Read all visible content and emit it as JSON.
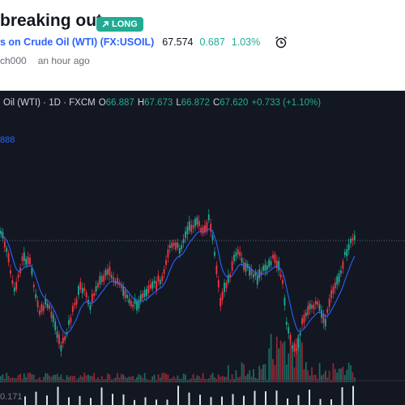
{
  "idea": {
    "title": "breaking out",
    "badge": "LONG",
    "symbol_link": "s on Crude Oil (WTI) (FX:USOIL)",
    "price": "67.574",
    "change": "0.687",
    "change_pct": "1.03%",
    "author": "ch000",
    "time": "an hour ago"
  },
  "chart": {
    "legend": {
      "symbol": "Oil (WTI) · 1D · FXCM",
      "o_label": "O",
      "o": "66.887",
      "h_label": "H",
      "h": "67.673",
      "l_label": "L",
      "l": "66.872",
      "c_label": "C",
      "c": "67.620",
      "chg": "+0.733 (+1.10%)"
    },
    "indicator_value": "888",
    "bottom_value": "0.171",
    "colors": {
      "up": "#22ab94",
      "down": "#f23645",
      "ma": "#2962ff",
      "bg": "#131722"
    }
  }
}
